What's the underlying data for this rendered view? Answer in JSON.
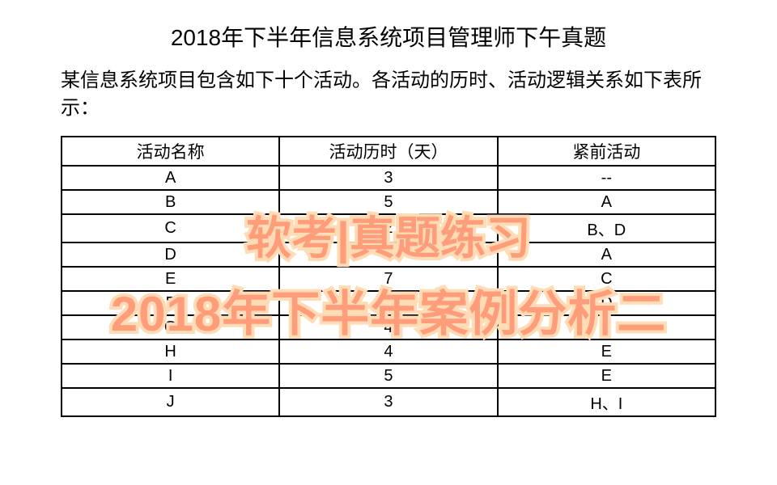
{
  "page": {
    "title": "2018年下半年信息系统项目管理师下午真题",
    "description": "某信息系统项目包含如下十个活动。各活动的历时、活动逻辑关系如下表所示："
  },
  "table": {
    "columns": [
      "活动名称",
      "活动历时（天）",
      "紧前活动"
    ],
    "rows": [
      [
        "A",
        "3",
        "--"
      ],
      [
        "B",
        "5",
        "A"
      ],
      [
        "C",
        "2",
        "B、D"
      ],
      [
        "D",
        "6",
        "A"
      ],
      [
        "E",
        "7",
        "C"
      ],
      [
        "F",
        "3",
        "D"
      ],
      [
        "G",
        "4",
        "F"
      ],
      [
        "H",
        "4",
        "E"
      ],
      [
        "I",
        "5",
        "E"
      ],
      [
        "J",
        "3",
        "H、I"
      ]
    ],
    "border_color": "#000000",
    "text_color": "#000000",
    "header_fontsize": 21,
    "cell_fontsize": 20
  },
  "overlay": {
    "line1": "软考|真题练习",
    "line2": "2018年下半年案例分析二",
    "fill_color": "#ff9d7a",
    "stroke_color": "#ffdcb5",
    "stroke_width": "8px",
    "line1_fontsize": 56,
    "line2_fontsize": 60
  }
}
